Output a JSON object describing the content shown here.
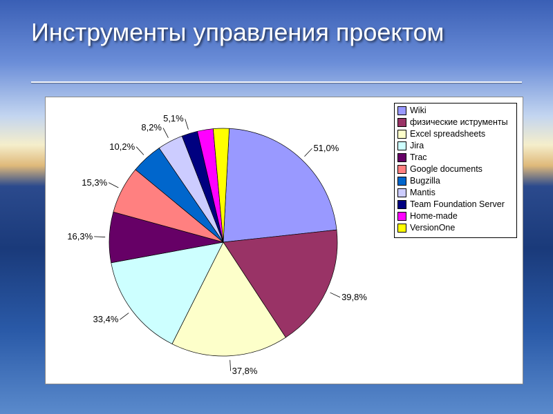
{
  "slide": {
    "title": "Инструменты управления проектом",
    "background_gradient": [
      "#3a5fb5",
      "#6a8dd8",
      "#c3d5f0",
      "#f5eecb",
      "#dfb97a",
      "#2b4a8d",
      "#1a3a7a",
      "#2a5aa8",
      "#5a8acc"
    ]
  },
  "chart": {
    "type": "pie",
    "panel_bg": "#ffffff",
    "panel_border": "#888888",
    "label_fontsize": 13,
    "label_color": "#000000",
    "legend_fontsize": 12.5,
    "legend_border": "#000000",
    "pie_stroke": "#000000",
    "pie_stroke_width": 0.7,
    "start_angle_deg": 273,
    "series": [
      {
        "label": "Wiki",
        "value": 51.0,
        "display": "51,0%",
        "color": "#9999ff"
      },
      {
        "label": "физические иструменты",
        "value": 39.8,
        "display": "39,8%",
        "color": "#993366"
      },
      {
        "label": "Excel spreadsheets",
        "value": 37.8,
        "display": "37,8%",
        "color": "#fdffca"
      },
      {
        "label": "Jira",
        "value": 33.4,
        "display": "33,4%",
        "color": "#cdffff"
      },
      {
        "label": "Trac",
        "value": 16.3,
        "display": "16,3%",
        "color": "#660066"
      },
      {
        "label": "Google documents",
        "value": 15.3,
        "display": "15,3%",
        "color": "#ff8080"
      },
      {
        "label": "Bugzilla",
        "value": 10.2,
        "display": "10,2%",
        "color": "#0066cc"
      },
      {
        "label": "Mantis",
        "value": 8.2,
        "display": "8,2%",
        "color": "#ccccff"
      },
      {
        "label": "Team Foundation Server",
        "value": 5.1,
        "display": "5,1%",
        "color": "#000080"
      },
      {
        "label": "Home-made",
        "value": 5.1,
        "display": "",
        "color": "#ff00ff"
      },
      {
        "label": "VersionOne",
        "value": 5.1,
        "display": "",
        "color": "#ffff00"
      }
    ]
  }
}
